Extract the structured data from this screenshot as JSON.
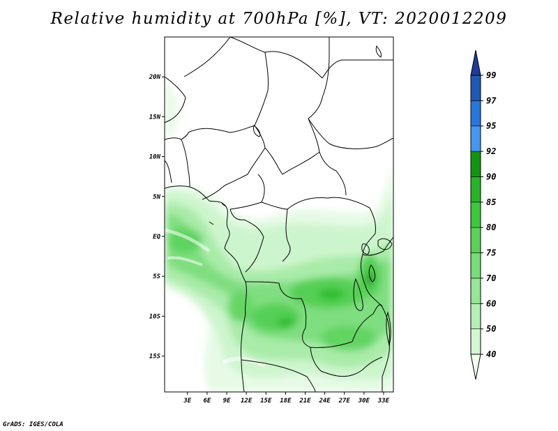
{
  "title": "Relative humidity at 700hPa [%], VT: 2020012209",
  "credit": "GrADS: IGES/COLA",
  "map": {
    "lon_range": [
      -0.5,
      34.5
    ],
    "lat_range": [
      -19.5,
      25
    ],
    "lat_ticks": [
      {
        "value": 20,
        "label": "20N"
      },
      {
        "value": 15,
        "label": "15N"
      },
      {
        "value": 10,
        "label": "10N"
      },
      {
        "value": 5,
        "label": "5N"
      },
      {
        "value": 0,
        "label": "EQ"
      },
      {
        "value": -5,
        "label": "5S"
      },
      {
        "value": -10,
        "label": "10S"
      },
      {
        "value": -15,
        "label": "15S"
      }
    ],
    "lon_ticks": [
      {
        "value": 3,
        "label": "3E"
      },
      {
        "value": 6,
        "label": "6E"
      },
      {
        "value": 9,
        "label": "9E"
      },
      {
        "value": 12,
        "label": "12E"
      },
      {
        "value": 15,
        "label": "15E"
      },
      {
        "value": 18,
        "label": "18E"
      },
      {
        "value": 21,
        "label": "21E"
      },
      {
        "value": 24,
        "label": "24E"
      },
      {
        "value": 27,
        "label": "27E"
      },
      {
        "value": 30,
        "label": "30E"
      },
      {
        "value": 33,
        "label": "33E"
      }
    ]
  },
  "colorbar": {
    "levels": [
      "40",
      "50",
      "60",
      "70",
      "75",
      "80",
      "85",
      "90",
      "92",
      "95",
      "97",
      "99"
    ],
    "colors": [
      "#f0fff0",
      "#d3f7d3",
      "#b4efb4",
      "#96e696",
      "#78dc78",
      "#5ad25a",
      "#3cc83c",
      "#28b428",
      "#129612",
      "#4696f0",
      "#2878dc",
      "#1e5ab4",
      "#1e3c96"
    ]
  }
}
